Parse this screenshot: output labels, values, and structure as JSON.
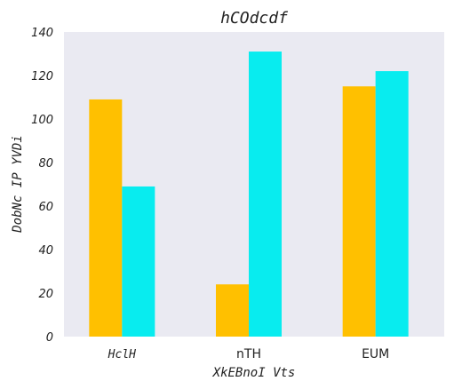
{
  "chart_data": {
    "type": "bar",
    "title": "hCOdcdf",
    "xlabel": "XkEBnoI Vts",
    "ylabel": "DobNc IP YVDi",
    "categories": [
      "HclH",
      "nTH",
      "EUM"
    ],
    "category_styles": [
      "mono-italic",
      "sans",
      "sans"
    ],
    "series": [
      {
        "color": "#ffc000",
        "values": [
          109,
          24,
          115
        ]
      },
      {
        "color": "#08ecef",
        "values": [
          69,
          131,
          122
        ]
      }
    ],
    "ylim": [
      0,
      140
    ],
    "yticks": [
      "0",
      "20",
      "40",
      "60",
      "80",
      "100",
      "120",
      "140"
    ],
    "grid": false,
    "background": "#eaeaf2"
  }
}
